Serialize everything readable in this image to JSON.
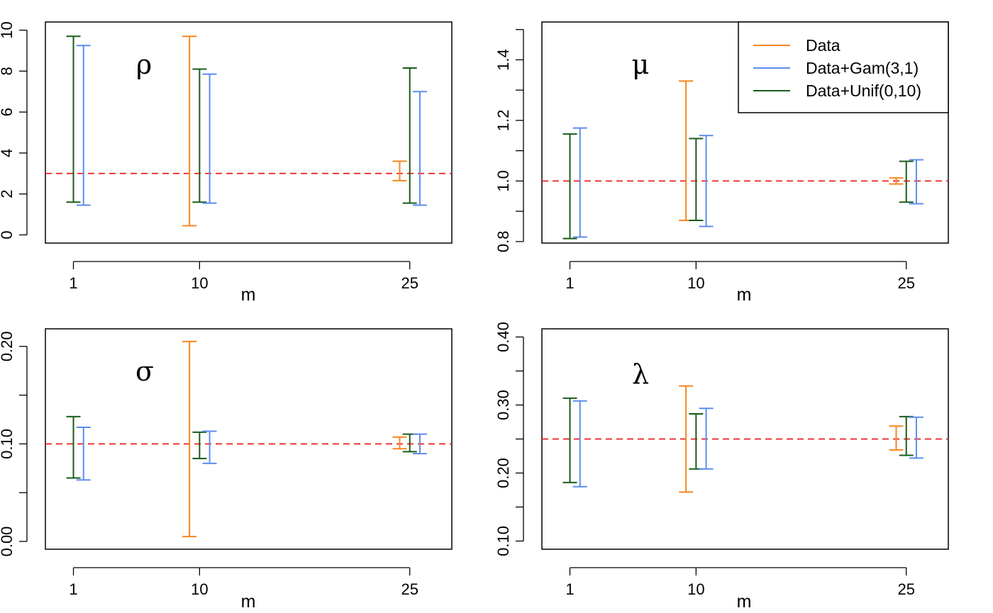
{
  "colors": {
    "Data": "#f7861e",
    "Data+Gam(3,1)": "#5b8ded",
    "Data+Unif(0,10)": "#1a5c1a",
    "reference": "#e8211d"
  },
  "chart_data": [
    {
      "type": "errorbar",
      "title": "ρ",
      "xlabel": "m",
      "categories": [
        "1",
        "10",
        "25"
      ],
      "x_positions": [
        1,
        10,
        25
      ],
      "xlim": [
        -1,
        28
      ],
      "ylim": [
        -0.4,
        10.4
      ],
      "yticks": [
        0,
        2,
        4,
        6,
        8,
        10
      ],
      "ytick_labels": [
        "0",
        "2",
        "4",
        "6",
        "8",
        "10"
      ],
      "reference_line": 3,
      "series": [
        {
          "name": "Data",
          "intervals": [
            null,
            [
              0.45,
              9.7
            ],
            [
              2.65,
              3.6
            ]
          ]
        },
        {
          "name": "Data+Unif(0,10)",
          "intervals": [
            [
              1.6,
              9.7
            ],
            [
              1.6,
              8.1
            ],
            [
              1.55,
              8.15
            ]
          ]
        },
        {
          "name": "Data+Gam(3,1)",
          "intervals": [
            [
              1.45,
              9.25
            ],
            [
              1.55,
              7.85
            ],
            [
              1.45,
              7.0
            ]
          ]
        }
      ]
    },
    {
      "type": "errorbar",
      "title": "μ",
      "xlabel": "m",
      "categories": [
        "1",
        "10",
        "25"
      ],
      "x_positions": [
        1,
        10,
        25
      ],
      "xlim": [
        -1,
        28
      ],
      "ylim": [
        0.795,
        1.525
      ],
      "yticks": [
        0.8,
        0.9,
        1.0,
        1.1,
        1.2,
        1.3,
        1.4,
        1.5
      ],
      "ytick_labels": [
        "0.8",
        "",
        "1.0",
        "",
        "1.2",
        "",
        "1.4",
        ""
      ],
      "reference_line": 1.0,
      "series": [
        {
          "name": "Data",
          "intervals": [
            null,
            [
              0.87,
              1.33
            ],
            [
              0.99,
              1.01
            ]
          ]
        },
        {
          "name": "Data+Unif(0,10)",
          "intervals": [
            [
              0.81,
              1.155
            ],
            [
              0.87,
              1.14
            ],
            [
              0.93,
              1.065
            ]
          ]
        },
        {
          "name": "Data+Gam(3,1)",
          "intervals": [
            [
              0.815,
              1.175
            ],
            [
              0.85,
              1.15
            ],
            [
              0.925,
              1.07
            ]
          ]
        }
      ],
      "legend": {
        "position": "top-right",
        "entries": [
          "Data",
          "Data+Gam(3,1)",
          "Data+Unif(0,10)"
        ]
      }
    },
    {
      "type": "errorbar",
      "title": "σ",
      "xlabel": "m",
      "categories": [
        "1",
        "10",
        "25"
      ],
      "x_positions": [
        1,
        10,
        25
      ],
      "xlim": [
        -1,
        28
      ],
      "ylim": [
        -0.008,
        0.218
      ],
      "yticks": [
        0.0,
        0.05,
        0.1,
        0.15,
        0.2
      ],
      "ytick_labels": [
        "0.00",
        "",
        "0.10",
        "",
        "0.20"
      ],
      "reference_line": 0.1,
      "series": [
        {
          "name": "Data",
          "intervals": [
            null,
            [
              0.005,
              0.205
            ],
            [
              0.095,
              0.107
            ]
          ]
        },
        {
          "name": "Data+Unif(0,10)",
          "intervals": [
            [
              0.065,
              0.128
            ],
            [
              0.085,
              0.112
            ],
            [
              0.092,
              0.11
            ]
          ]
        },
        {
          "name": "Data+Gam(3,1)",
          "intervals": [
            [
              0.063,
              0.117
            ],
            [
              0.08,
              0.113
            ],
            [
              0.09,
              0.11
            ]
          ]
        }
      ]
    },
    {
      "type": "errorbar",
      "title": "λ",
      "xlabel": "m",
      "categories": [
        "1",
        "10",
        "25"
      ],
      "x_positions": [
        1,
        10,
        25
      ],
      "xlim": [
        -1,
        28
      ],
      "ylim": [
        0.088,
        0.412
      ],
      "yticks": [
        0.1,
        0.15,
        0.2,
        0.25,
        0.3,
        0.35,
        0.4
      ],
      "ytick_labels": [
        "0.10",
        "",
        "0.20",
        "",
        "0.30",
        "",
        "0.40"
      ],
      "reference_line": 0.25,
      "series": [
        {
          "name": "Data",
          "intervals": [
            null,
            [
              0.172,
              0.328
            ],
            [
              0.234,
              0.269
            ]
          ]
        },
        {
          "name": "Data+Unif(0,10)",
          "intervals": [
            [
              0.186,
              0.31
            ],
            [
              0.206,
              0.287
            ],
            [
              0.226,
              0.283
            ]
          ]
        },
        {
          "name": "Data+Gam(3,1)",
          "intervals": [
            [
              0.18,
              0.306
            ],
            [
              0.206,
              0.295
            ],
            [
              0.222,
              0.282
            ]
          ]
        }
      ]
    }
  ]
}
